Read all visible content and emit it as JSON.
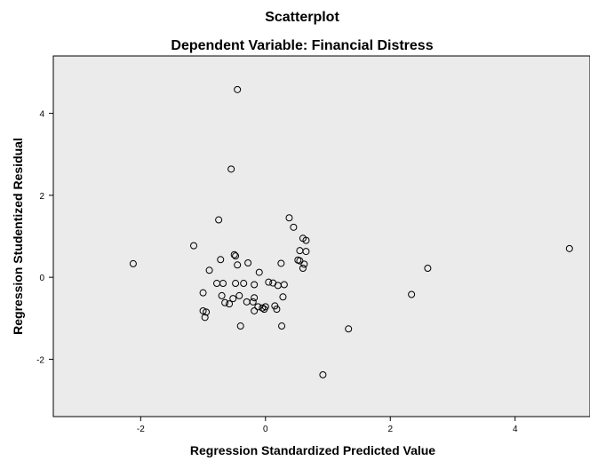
{
  "chart_data": {
    "type": "scatter",
    "title": "Scatterplot",
    "subtitle": "Dependent Variable: Financial Distress",
    "xlabel": "Regression Standardized Predicted Value",
    "ylabel": "Regression Studentized Residual",
    "xlim": [
      -3.4,
      5.2
    ],
    "ylim": [
      -3.4,
      5.4
    ],
    "xticks": [
      -2,
      0,
      2,
      4
    ],
    "yticks": [
      -2,
      0,
      2,
      4
    ],
    "grid": false,
    "background": "#ebebeb",
    "point_color": "#000000",
    "points": [
      {
        "x": -0.45,
        "y": 4.58
      },
      {
        "x": -0.55,
        "y": 2.64
      },
      {
        "x": -0.75,
        "y": 1.4
      },
      {
        "x": 0.38,
        "y": 1.45
      },
      {
        "x": 0.45,
        "y": 1.22
      },
      {
        "x": 0.6,
        "y": 0.95
      },
      {
        "x": 0.65,
        "y": 0.9
      },
      {
        "x": -1.15,
        "y": 0.77
      },
      {
        "x": 0.55,
        "y": 0.65
      },
      {
        "x": 0.65,
        "y": 0.63
      },
      {
        "x": -0.5,
        "y": 0.55
      },
      {
        "x": -0.48,
        "y": 0.52
      },
      {
        "x": -0.72,
        "y": 0.43
      },
      {
        "x": 0.52,
        "y": 0.42
      },
      {
        "x": 0.55,
        "y": 0.4
      },
      {
        "x": -0.28,
        "y": 0.35
      },
      {
        "x": 0.25,
        "y": 0.34
      },
      {
        "x": 0.62,
        "y": 0.32
      },
      {
        "x": -0.45,
        "y": 0.3
      },
      {
        "x": -2.12,
        "y": 0.33
      },
      {
        "x": 0.6,
        "y": 0.22
      },
      {
        "x": -0.9,
        "y": 0.17
      },
      {
        "x": -0.1,
        "y": 0.12
      },
      {
        "x": 2.6,
        "y": 0.22
      },
      {
        "x": 4.87,
        "y": 0.7
      },
      {
        "x": -0.78,
        "y": -0.15
      },
      {
        "x": -0.68,
        "y": -0.15
      },
      {
        "x": -0.48,
        "y": -0.15
      },
      {
        "x": -0.35,
        "y": -0.15
      },
      {
        "x": -0.18,
        "y": -0.18
      },
      {
        "x": 0.05,
        "y": -0.12
      },
      {
        "x": 0.12,
        "y": -0.14
      },
      {
        "x": 0.2,
        "y": -0.2
      },
      {
        "x": 0.3,
        "y": -0.18
      },
      {
        "x": -1.0,
        "y": -0.38
      },
      {
        "x": -0.7,
        "y": -0.45
      },
      {
        "x": -0.42,
        "y": -0.45
      },
      {
        "x": -0.18,
        "y": -0.5
      },
      {
        "x": -0.52,
        "y": -0.52
      },
      {
        "x": -0.3,
        "y": -0.6
      },
      {
        "x": -0.2,
        "y": -0.6
      },
      {
        "x": 0.28,
        "y": -0.48
      },
      {
        "x": -0.65,
        "y": -0.62
      },
      {
        "x": -0.58,
        "y": -0.65
      },
      {
        "x": 0.0,
        "y": -0.72
      },
      {
        "x": -0.05,
        "y": -0.75
      },
      {
        "x": 0.15,
        "y": -0.7
      },
      {
        "x": -0.12,
        "y": -0.72
      },
      {
        "x": -0.02,
        "y": -0.78
      },
      {
        "x": -0.18,
        "y": -0.82
      },
      {
        "x": 0.18,
        "y": -0.78
      },
      {
        "x": -1.0,
        "y": -0.82
      },
      {
        "x": -0.95,
        "y": -0.85
      },
      {
        "x": -0.97,
        "y": -0.98
      },
      {
        "x": -0.4,
        "y": -1.19
      },
      {
        "x": 0.26,
        "y": -1.19
      },
      {
        "x": 2.34,
        "y": -0.42
      },
      {
        "x": 1.33,
        "y": -1.26
      },
      {
        "x": 0.92,
        "y": -2.38
      }
    ]
  }
}
